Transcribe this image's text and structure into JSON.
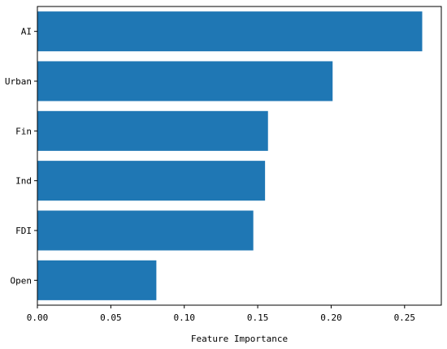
{
  "chart_data": {
    "type": "bar",
    "orientation": "horizontal",
    "categories": [
      "AI",
      "Urban",
      "Fin",
      "Ind",
      "FDI",
      "Open"
    ],
    "values": [
      0.262,
      0.201,
      0.157,
      0.155,
      0.147,
      0.081
    ],
    "xlabel": "Feature Importance",
    "ylabel": "",
    "xlim": [
      0.0,
      0.275
    ],
    "xticks": [
      "0.00",
      "0.05",
      "0.10",
      "0.15",
      "0.20",
      "0.25"
    ],
    "bar_color": "#1f77b4",
    "grid": false
  }
}
